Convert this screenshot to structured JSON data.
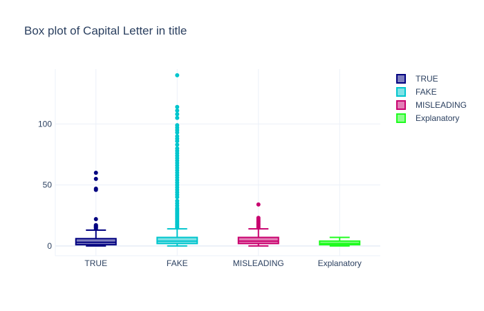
{
  "chart_data": {
    "type": "box",
    "title": "Box plot of Capital Letter in title",
    "xlabel": "",
    "ylabel": "",
    "categories": [
      "TRUE",
      "FAKE",
      "MISLEADING",
      "Explanatory"
    ],
    "y_ticks": [
      "0",
      "50",
      "100"
    ],
    "ylim": [
      -8,
      145
    ],
    "grid": true,
    "legend_position": "top-right",
    "series": [
      {
        "name": "TRUE",
        "color": "#000080",
        "fill": "#7f7fbf",
        "min": 0,
        "q1": 1,
        "median": 3,
        "q3": 6,
        "max": 13,
        "outliers": [
          14,
          15,
          15,
          16,
          16,
          17,
          17,
          22,
          46,
          47,
          55,
          60
        ]
      },
      {
        "name": "FAKE",
        "color": "#00c5cd",
        "fill": "#7fe2e6",
        "min": 0,
        "q1": 2,
        "median": 4,
        "q3": 7,
        "max": 14,
        "outliers": [
          15,
          16,
          17,
          18,
          19,
          20,
          21,
          22,
          23,
          24,
          25,
          26,
          27,
          28,
          29,
          30,
          31,
          33,
          35,
          37,
          40,
          42,
          44,
          46,
          48,
          50,
          52,
          54,
          56,
          58,
          60,
          62,
          64,
          66,
          68,
          70,
          72,
          74,
          76,
          78,
          80,
          83,
          86,
          88,
          90,
          93,
          95,
          97,
          99,
          105,
          108,
          111,
          114,
          140
        ]
      },
      {
        "name": "MISLEADING",
        "color": "#c8006e",
        "fill": "#e37fb6",
        "min": 0,
        "q1": 2,
        "median": 4,
        "q3": 7,
        "max": 14,
        "outliers": [
          15,
          16,
          17,
          18,
          19,
          20,
          21,
          22,
          23,
          34
        ]
      },
      {
        "name": "Explanatory",
        "color": "#1efc1e",
        "fill": "#8efd8e",
        "min": 0,
        "q1": 1,
        "median": 2,
        "q3": 4,
        "max": 7,
        "outliers": []
      }
    ]
  }
}
